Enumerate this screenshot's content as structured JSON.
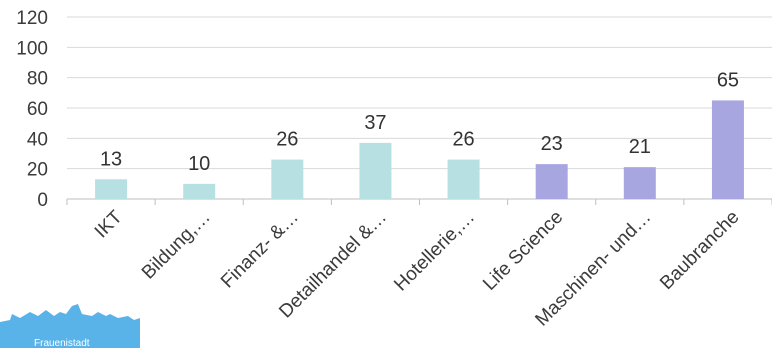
{
  "chart_data": {
    "type": "bar",
    "title": "",
    "xlabel": "",
    "ylabel": "",
    "ylim": [
      0,
      120
    ],
    "yticks": [
      0,
      20,
      40,
      60,
      80,
      100,
      120
    ],
    "grid": true,
    "legend": "none",
    "categories": [
      "IKT",
      "Bildung,…",
      "Finanz- &…",
      "Detailhandel &…",
      "Hotellerie,…",
      "Life Science",
      "Maschinen- und…",
      "Baubranche"
    ],
    "values": [
      13,
      10,
      26,
      37,
      26,
      23,
      21,
      65
    ],
    "bar_colors": [
      "#b7e0e3",
      "#b7e0e3",
      "#b7e0e3",
      "#b7e0e3",
      "#b7e0e3",
      "#a7a6e0",
      "#a7a6e0",
      "#a7a6e0"
    ]
  },
  "logo": {
    "color": "#5ab3e8",
    "text": "Frauenistadt"
  }
}
